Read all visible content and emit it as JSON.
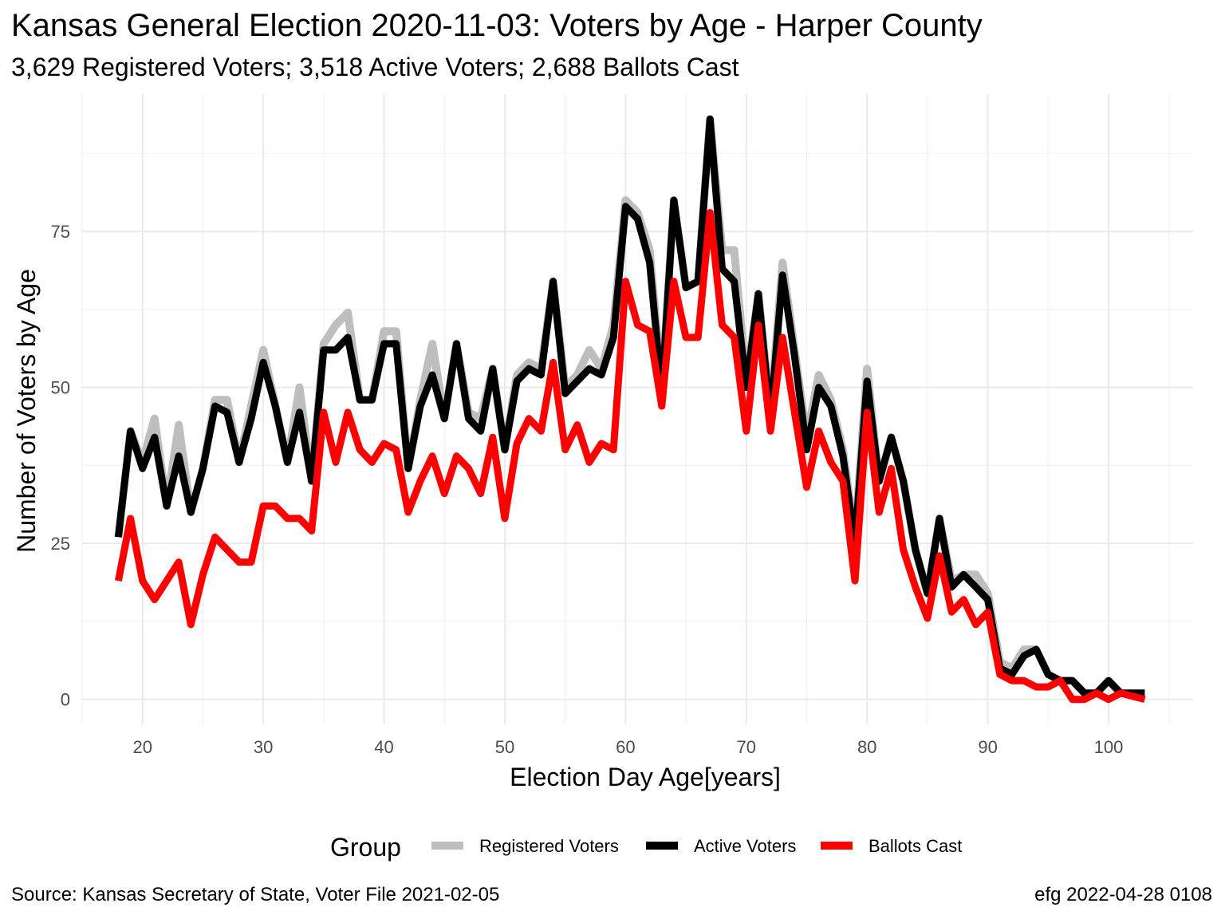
{
  "title": "Kansas General Election 2020-11-03:  Voters by Age - Harper County",
  "subtitle": "3,629 Registered Voters; 3,518 Active Voters; 2,688 Ballots Cast",
  "caption_left": "Source:  Kansas Secretary of State, Voter File  2021-02-05",
  "caption_right": "efg 2022-04-28 0108",
  "chart_data": {
    "type": "line",
    "xlabel": "Election Day Age[years]",
    "ylabel": "Number of Voters by Age",
    "xlim": [
      15,
      107
    ],
    "ylim": [
      -4,
      97
    ],
    "xticks": [
      20,
      30,
      40,
      50,
      60,
      70,
      80,
      90,
      100
    ],
    "yticks": [
      0,
      25,
      50,
      75
    ],
    "grid": true,
    "legend": {
      "title": "Group",
      "position": "bottom"
    },
    "series": [
      {
        "name": "Registered Voters",
        "color": "#bebebe",
        "x": [
          18,
          19,
          20,
          21,
          22,
          23,
          24,
          25,
          26,
          27,
          28,
          29,
          30,
          31,
          32,
          33,
          34,
          35,
          36,
          37,
          38,
          39,
          40,
          41,
          42,
          43,
          44,
          45,
          46,
          47,
          48,
          49,
          50,
          51,
          52,
          53,
          54,
          55,
          56,
          57,
          58,
          59,
          60,
          61,
          62,
          63,
          64,
          65,
          66,
          67,
          68,
          69,
          70,
          71,
          72,
          73,
          74,
          75,
          76,
          77,
          78,
          79,
          80,
          81,
          82,
          83,
          84,
          85,
          86,
          87,
          88,
          89,
          90,
          91,
          92,
          93,
          94,
          95,
          96,
          97,
          98,
          99,
          100,
          101,
          102,
          103
        ],
        "values": [
          26,
          43,
          38,
          45,
          31,
          44,
          30,
          37,
          48,
          48,
          38,
          47,
          56,
          47,
          38,
          50,
          35,
          57,
          60,
          62,
          48,
          48,
          59,
          59,
          37,
          48,
          57,
          45,
          57,
          46,
          45,
          53,
          40,
          52,
          54,
          53,
          67,
          50,
          52,
          56,
          53,
          60,
          80,
          78,
          72,
          50,
          80,
          66,
          67,
          93,
          72,
          72,
          51,
          65,
          46,
          70,
          56,
          42,
          52,
          48,
          40,
          26,
          53,
          35,
          42,
          35,
          24,
          17,
          29,
          19,
          20,
          20,
          17,
          6,
          5,
          8,
          8,
          4,
          3,
          3,
          1,
          1,
          3,
          1,
          1,
          1
        ]
      },
      {
        "name": "Active Voters",
        "color": "#000000",
        "x": [
          18,
          19,
          20,
          21,
          22,
          23,
          24,
          25,
          26,
          27,
          28,
          29,
          30,
          31,
          32,
          33,
          34,
          35,
          36,
          37,
          38,
          39,
          40,
          41,
          42,
          43,
          44,
          45,
          46,
          47,
          48,
          49,
          50,
          51,
          52,
          53,
          54,
          55,
          56,
          57,
          58,
          59,
          60,
          61,
          62,
          63,
          64,
          65,
          66,
          67,
          68,
          69,
          70,
          71,
          72,
          73,
          74,
          75,
          76,
          77,
          78,
          79,
          80,
          81,
          82,
          83,
          84,
          85,
          86,
          87,
          88,
          89,
          90,
          91,
          92,
          93,
          94,
          95,
          96,
          97,
          98,
          99,
          100,
          101,
          102,
          103
        ],
        "values": [
          26,
          43,
          37,
          42,
          31,
          39,
          30,
          37,
          47,
          46,
          38,
          45,
          54,
          47,
          38,
          46,
          35,
          56,
          56,
          58,
          48,
          48,
          57,
          57,
          37,
          47,
          52,
          45,
          57,
          45,
          43,
          53,
          40,
          51,
          53,
          52,
          67,
          49,
          51,
          53,
          52,
          58,
          79,
          77,
          70,
          49,
          80,
          66,
          67,
          93,
          69,
          67,
          50,
          65,
          45,
          68,
          55,
          40,
          50,
          47,
          39,
          25,
          51,
          35,
          42,
          35,
          24,
          17,
          29,
          18,
          20,
          18,
          16,
          5,
          4,
          7,
          8,
          4,
          3,
          3,
          1,
          1,
          3,
          1,
          1,
          1
        ]
      },
      {
        "name": "Ballots Cast",
        "color": "#ff0000",
        "x": [
          18,
          19,
          20,
          21,
          22,
          23,
          24,
          25,
          26,
          27,
          28,
          29,
          30,
          31,
          32,
          33,
          34,
          35,
          36,
          37,
          38,
          39,
          40,
          41,
          42,
          43,
          44,
          45,
          46,
          47,
          48,
          49,
          50,
          51,
          52,
          53,
          54,
          55,
          56,
          57,
          58,
          59,
          60,
          61,
          62,
          63,
          64,
          65,
          66,
          67,
          68,
          69,
          70,
          71,
          72,
          73,
          74,
          75,
          76,
          77,
          78,
          79,
          80,
          81,
          82,
          83,
          84,
          85,
          86,
          87,
          88,
          89,
          90,
          91,
          92,
          93,
          94,
          95,
          96,
          97,
          98,
          99,
          100,
          101,
          102,
          103
        ],
        "values": [
          19,
          29,
          19,
          16,
          19,
          22,
          12,
          20,
          26,
          24,
          22,
          22,
          31,
          31,
          29,
          29,
          27,
          46,
          38,
          46,
          40,
          38,
          41,
          40,
          30,
          35,
          39,
          33,
          39,
          37,
          33,
          42,
          29,
          41,
          45,
          43,
          54,
          40,
          44,
          38,
          41,
          40,
          67,
          60,
          59,
          47,
          67,
          58,
          58,
          78,
          60,
          58,
          43,
          60,
          43,
          58,
          46,
          34,
          43,
          38,
          35,
          19,
          46,
          30,
          37,
          24,
          18,
          13,
          23,
          14,
          16,
          12,
          14,
          4,
          3,
          3,
          2,
          2,
          3,
          0,
          0,
          1,
          0,
          1,
          0.5,
          0
        ]
      }
    ]
  }
}
